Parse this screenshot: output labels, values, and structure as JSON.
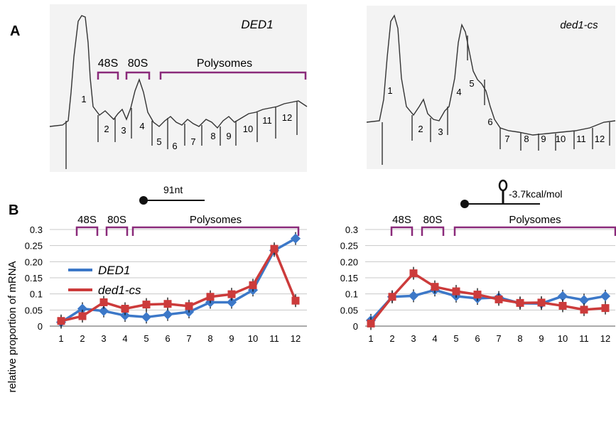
{
  "panels": {
    "a": "A",
    "b": "B"
  },
  "profiles": [
    {
      "title": "DED1",
      "markers": [
        "48S",
        "80S",
        "Polysomes"
      ],
      "fractions": [
        "1",
        "2",
        "3",
        "4",
        "5",
        "6",
        "7",
        "8",
        "9",
        "10",
        "11",
        "12"
      ]
    },
    {
      "title": "ded1-cs",
      "fractions": [
        "1",
        "2",
        "3",
        "4",
        "5",
        "6",
        "7",
        "8",
        "9",
        "10",
        "11",
        "12"
      ]
    }
  ],
  "reporters": [
    {
      "label": "91nt"
    },
    {
      "label": "-3.7kcal/mol"
    }
  ],
  "colors": {
    "DED1": "#3c78c8",
    "ded1-cs": "#cc3b3b",
    "bracket": "#8a2a7a"
  },
  "chart_data": [
    {
      "type": "line",
      "ylabel": "relative proportion of mRNA",
      "ylim": [
        0,
        0.3
      ],
      "yticks": [
        "0",
        "0.05",
        "0.1",
        "0.15",
        "0.20",
        "0.25",
        "0.3"
      ],
      "x": [
        1,
        2,
        3,
        4,
        5,
        6,
        7,
        8,
        9,
        10,
        11,
        12
      ],
      "brackets": [
        "48S",
        "80S",
        "Polysomes"
      ],
      "legend": {
        "position": "top-left"
      },
      "series": [
        {
          "name": "DED1",
          "values": [
            0.012,
            0.054,
            0.047,
            0.033,
            0.028,
            0.036,
            0.044,
            0.074,
            0.074,
            0.112,
            0.235,
            0.272
          ]
        },
        {
          "name": "ded1-cs",
          "values": [
            0.016,
            0.031,
            0.074,
            0.054,
            0.067,
            0.069,
            0.062,
            0.091,
            0.099,
            0.127,
            0.24,
            0.079
          ]
        }
      ]
    },
    {
      "type": "line",
      "ylim": [
        0,
        0.3
      ],
      "yticks": [
        "0",
        "0.05",
        "0.1",
        "0.15",
        "0.20",
        "0.25",
        "0.3"
      ],
      "x": [
        1,
        2,
        3,
        4,
        5,
        6,
        7,
        8,
        9,
        10,
        11,
        12
      ],
      "brackets": [
        "48S",
        "80S",
        "Polysomes"
      ],
      "series": [
        {
          "name": "DED1",
          "values": [
            0.018,
            0.091,
            0.094,
            0.112,
            0.093,
            0.086,
            0.089,
            0.071,
            0.07,
            0.093,
            0.081,
            0.093
          ]
        },
        {
          "name": "ded1-cs",
          "values": [
            0.008,
            0.091,
            0.164,
            0.122,
            0.108,
            0.098,
            0.083,
            0.072,
            0.073,
            0.063,
            0.051,
            0.056
          ]
        }
      ]
    }
  ]
}
